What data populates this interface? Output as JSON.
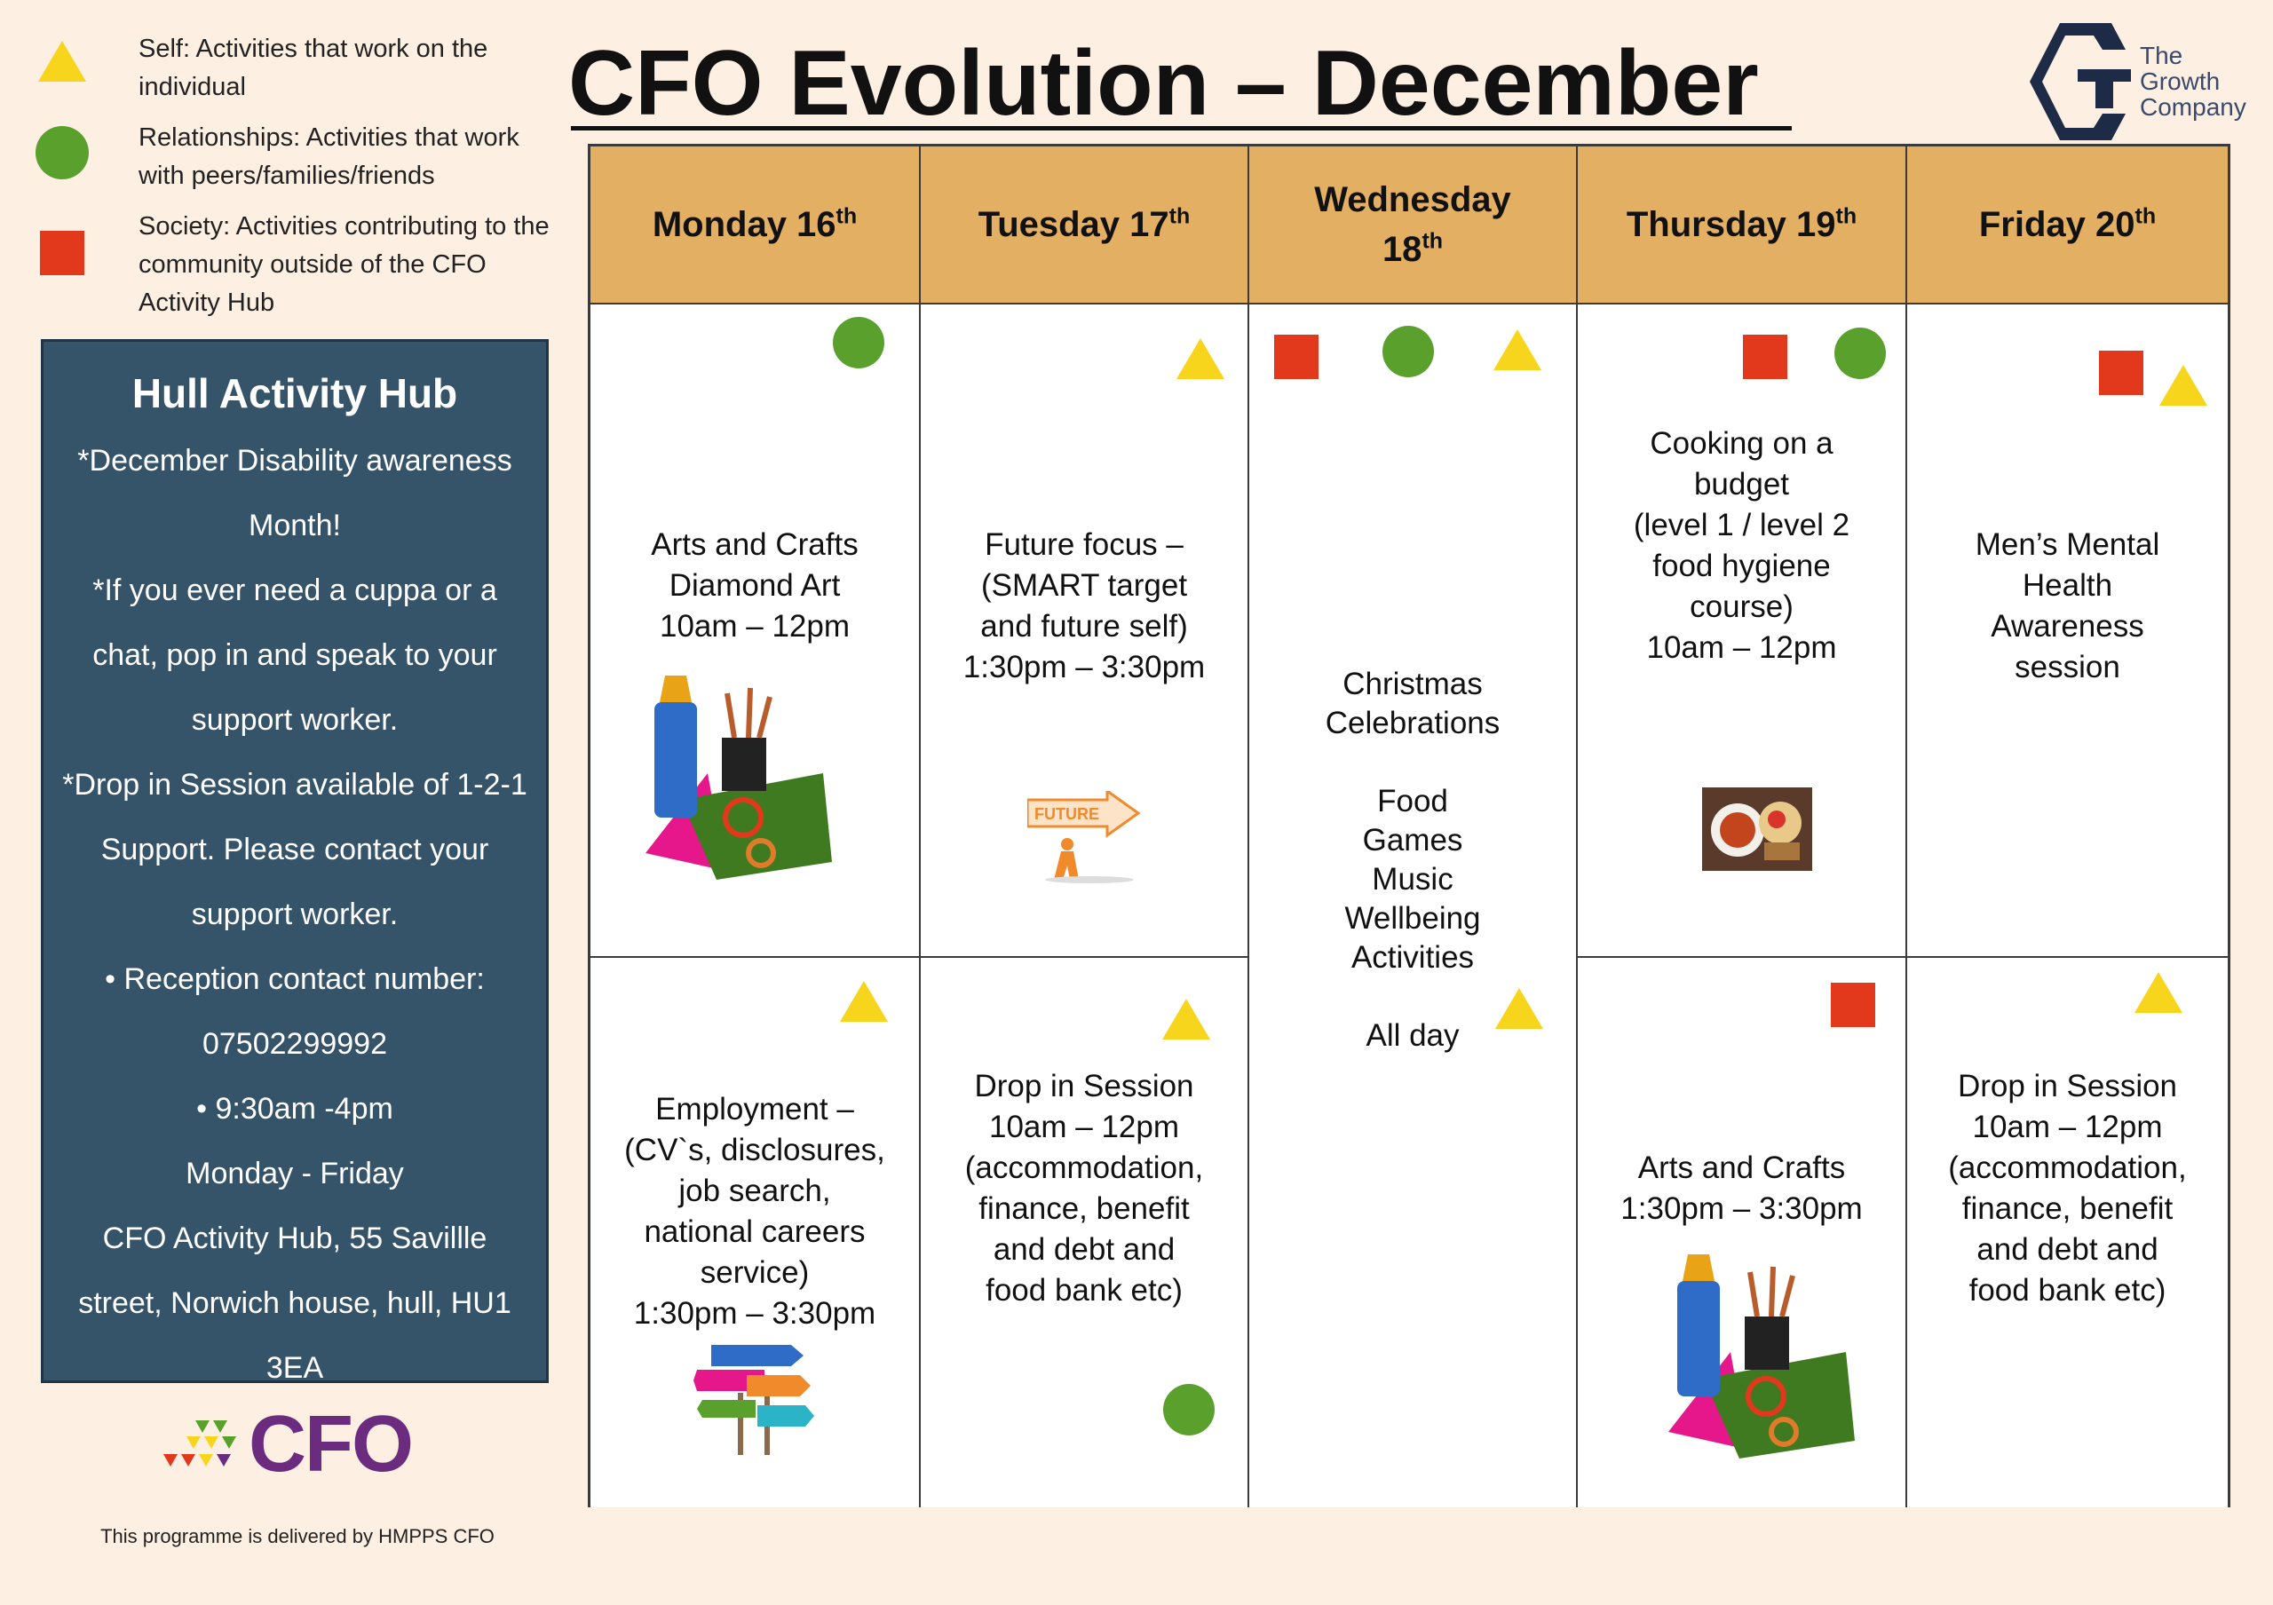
{
  "legend": [
    {
      "symbol": "triangle",
      "text": "Self: Activities that work on the individual"
    },
    {
      "symbol": "circle",
      "text": "Relationships: Activities that work with peers/families/friends"
    },
    {
      "symbol": "square",
      "text": "Society: Activities contributing to the community outside of the CFO Activity Hub"
    }
  ],
  "colors": {
    "self": "#f7d51d",
    "relationships": "#5aa02c",
    "society": "#e2381b",
    "header": "#e3b063",
    "hub": "#365469"
  },
  "hub": {
    "title": "Hull Activity Hub",
    "lines": [
      "*December Disability awareness Month!",
      "*If you ever need a cuppa or a chat, pop in and speak to your support worker.",
      "*Drop in Session available of 1-2-1 Support. Please contact your support worker.",
      "•   Reception contact number: 07502299992",
      "•   9:30am -4pm",
      "Monday - Friday",
      "CFO Activity Hub, 55 Savillle street, Norwich house, hull, HU1 3EA"
    ]
  },
  "title": "CFO Evolution – December",
  "growth_company": {
    "line1": "The",
    "line2": "Growth",
    "line3": "Company"
  },
  "cfo_logo_text": "CFO",
  "footer": "This programme is delivered by HMPPS CFO",
  "days": [
    {
      "name": "Monday 16",
      "suffix": "th"
    },
    {
      "name": "Tuesday 17",
      "suffix": "th"
    },
    {
      "name": "Wednesday 18",
      "suffix": "th"
    },
    {
      "name": "Thursday 19",
      "suffix": "th"
    },
    {
      "name": "Friday 20",
      "suffix": "th"
    }
  ],
  "sessions": {
    "mon_am": {
      "text": "Arts and Crafts\nDiamond Art\n10am – 12pm",
      "markers": [
        "circle"
      ],
      "image": "arts-crafts-clipart"
    },
    "tue_am": {
      "text": "Future focus –\n(SMART target\nand future self)\n1:30pm – 3:30pm",
      "markers": [
        "triangle"
      ],
      "image": "future-sign-clipart"
    },
    "wed_all": {
      "text": "Christmas\nCelebrations\n\nFood\nGames\nMusic\nWellbeing\nActivities\n\nAll day",
      "markers": [
        "square",
        "circle",
        "triangle",
        "triangle"
      ]
    },
    "thu_am": {
      "text": "Cooking on a\nbudget\n(level 1 / level 2\nfood hygiene\ncourse)\n10am – 12pm",
      "markers": [
        "square",
        "circle"
      ],
      "image": "food-photo"
    },
    "fri_am": {
      "text": "Men’s Mental\nHealth\nAwareness\nsession",
      "markers": [
        "square",
        "triangle"
      ]
    },
    "mon_pm": {
      "text": "Employment –\n(CV`s, disclosures,\njob search,\nnational careers\nservice)\n1:30pm – 3:30pm",
      "markers": [
        "triangle"
      ],
      "image": "employment-signpost-clipart"
    },
    "tue_pm": {
      "text": "Drop in Session\n10am – 12pm\n(accommodation,\nfinance, benefit\nand debt and\nfood bank etc)",
      "markers": [
        "triangle",
        "circle"
      ]
    },
    "thu_pm": {
      "text": "Arts and Crafts\n1:30pm – 3:30pm",
      "markers": [
        "square"
      ],
      "image": "arts-crafts-clipart"
    },
    "fri_pm": {
      "text": "Drop in Session\n10am – 12pm\n(accommodation,\nfinance, benefit\nand debt and\nfood bank etc)",
      "markers": [
        "triangle"
      ]
    }
  }
}
